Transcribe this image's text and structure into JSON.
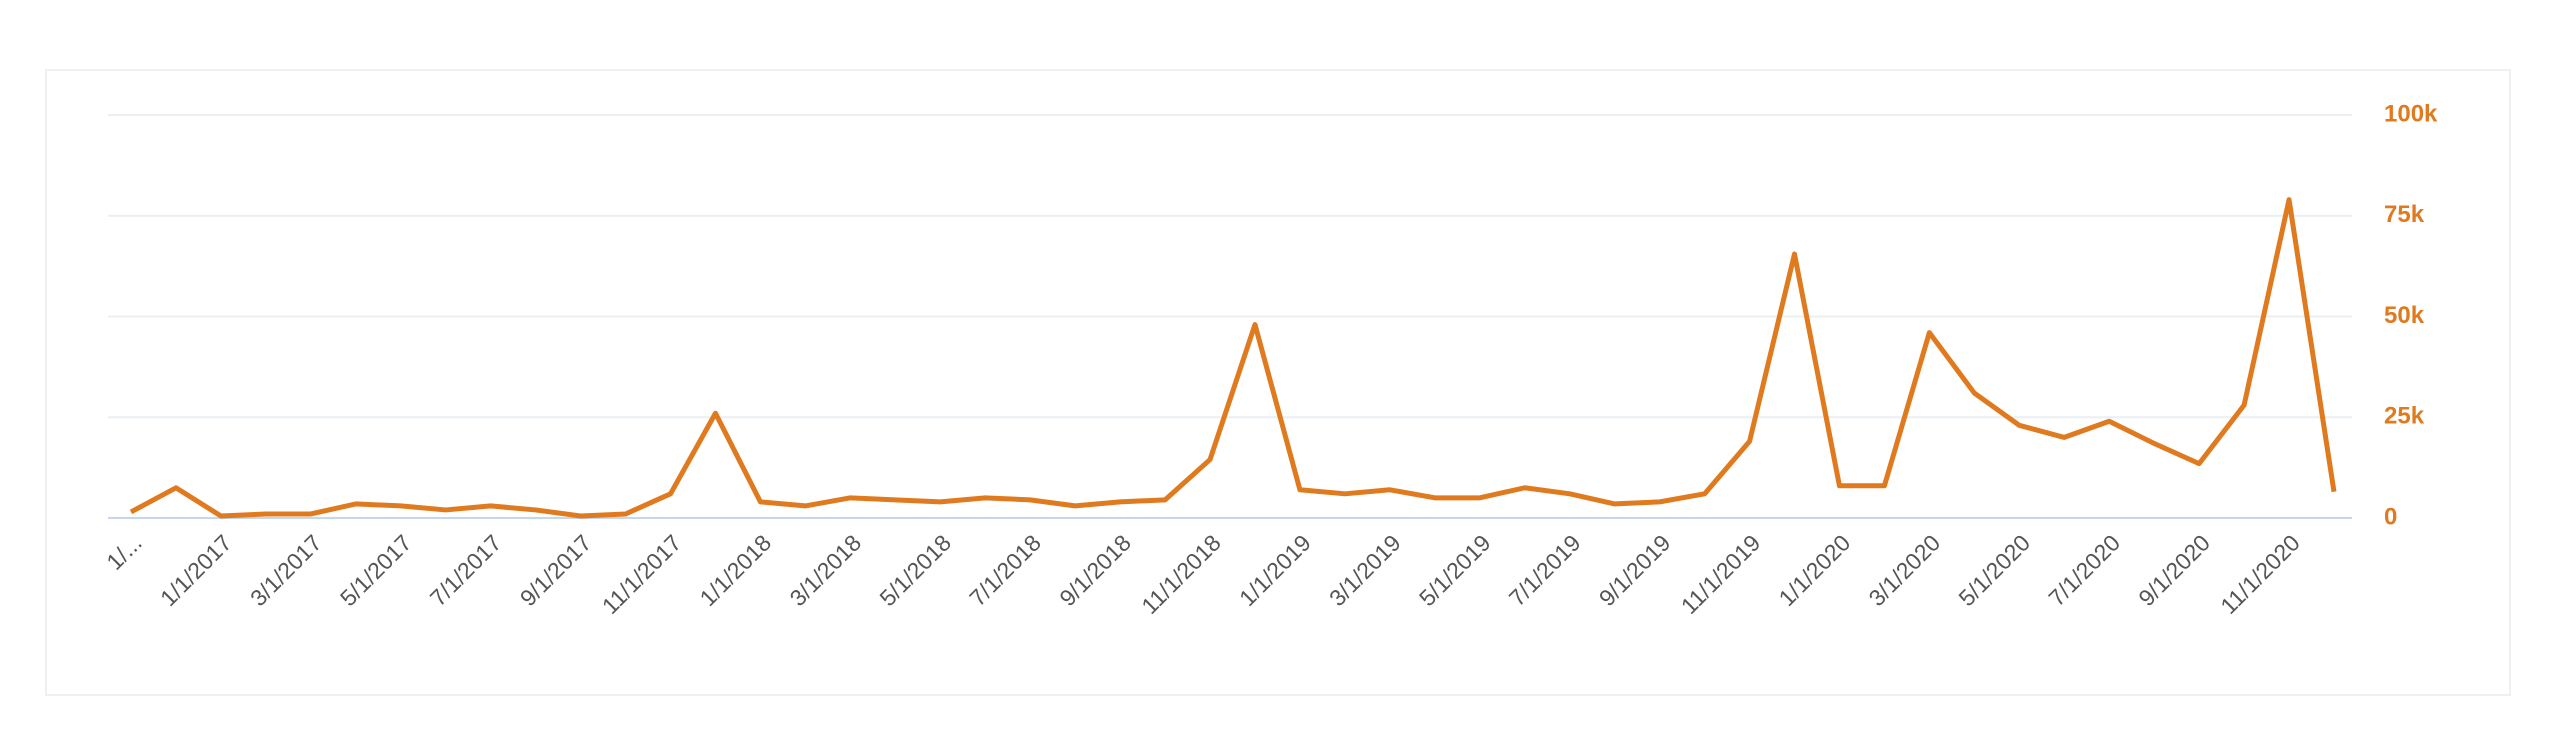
{
  "chart_data": {
    "type": "line",
    "categories": [
      "1/...",
      null,
      "1/1/2017",
      null,
      "3/1/2017",
      null,
      "5/1/2017",
      null,
      "7/1/2017",
      null,
      "9/1/2017",
      null,
      "11/1/2017",
      null,
      "1/1/2018",
      null,
      "3/1/2018",
      null,
      "5/1/2018",
      null,
      "7/1/2018",
      null,
      "9/1/2018",
      null,
      "11/1/2018",
      null,
      "1/1/2019",
      null,
      "3/1/2019",
      null,
      "5/1/2019",
      null,
      "7/1/2019",
      null,
      "9/1/2019",
      null,
      "11/1/2019",
      null,
      "1/1/2020",
      null,
      "3/1/2020",
      null,
      "5/1/2020",
      null,
      "7/1/2020",
      null,
      "9/1/2020",
      null,
      "11/1/2020",
      null
    ],
    "series": [
      {
        "color": "#e07a1f",
        "values": [
          1500,
          7500,
          500,
          1000,
          1000,
          3500,
          3000,
          2000,
          3000,
          2000,
          500,
          1000,
          6000,
          26000,
          4000,
          3000,
          5000,
          4500,
          4000,
          5000,
          4500,
          3000,
          4000,
          4500,
          14500,
          48000,
          7000,
          6000,
          7000,
          5000,
          5000,
          7500,
          6000,
          3500,
          4000,
          6000,
          19000,
          65500,
          8000,
          8000,
          46000,
          31000,
          23000,
          20000,
          24000,
          18500,
          13500,
          28000,
          79000,
          6500
        ]
      }
    ],
    "ylim": [
      0,
      100000
    ],
    "yticks": [
      0,
      {
        "value": 25000,
        "label": "25k"
      },
      {
        "value": 50000,
        "label": "50k"
      },
      {
        "value": 75000,
        "label": "75k"
      },
      {
        "value": 100000,
        "label": "100k"
      }
    ],
    "grid": true
  }
}
